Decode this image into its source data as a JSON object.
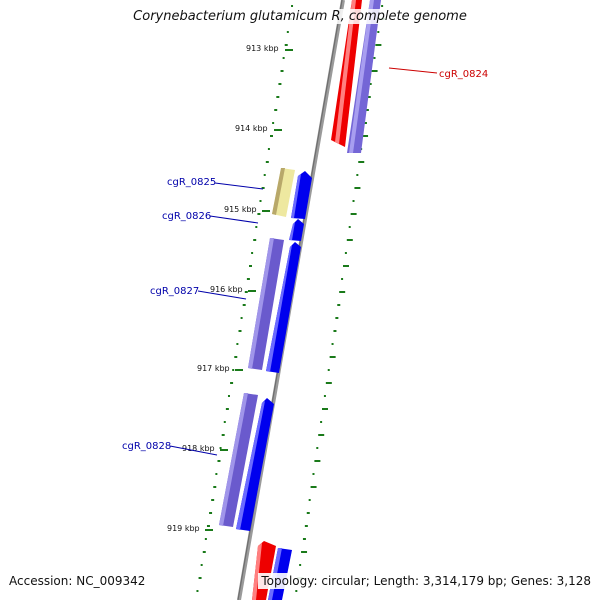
{
  "title": "Corynebacterium glutamicum R, complete genome",
  "accession_text": "Accession: NC_009342",
  "topology_text": "Topology: circular; Length: 3,314,179 bp; Genes: 3,128",
  "colors": {
    "backbone": "#8c8c8c",
    "gc_ticks": "#1a7a1a",
    "forward_gene": "#0000ff",
    "forward_gene_alt": "#7b68d8",
    "reverse_gene": "#ff0000",
    "rna_gene": "#eee8aa",
    "label_forward": "#0000aa",
    "label_reverse": "#cc0000"
  },
  "ruler_labels": [
    "913 kbp",
    "914 kbp",
    "915 kbp",
    "916 kbp",
    "917 kbp",
    "918 kbp",
    "919 kbp"
  ],
  "gene_labels": [
    {
      "name": "cgR_0824",
      "strand": "reverse"
    },
    {
      "name": "cgR_0825",
      "strand": "forward"
    },
    {
      "name": "cgR_0826",
      "strand": "forward"
    },
    {
      "name": "cgR_0827",
      "strand": "forward"
    },
    {
      "name": "cgR_0828",
      "strand": "forward"
    }
  ]
}
